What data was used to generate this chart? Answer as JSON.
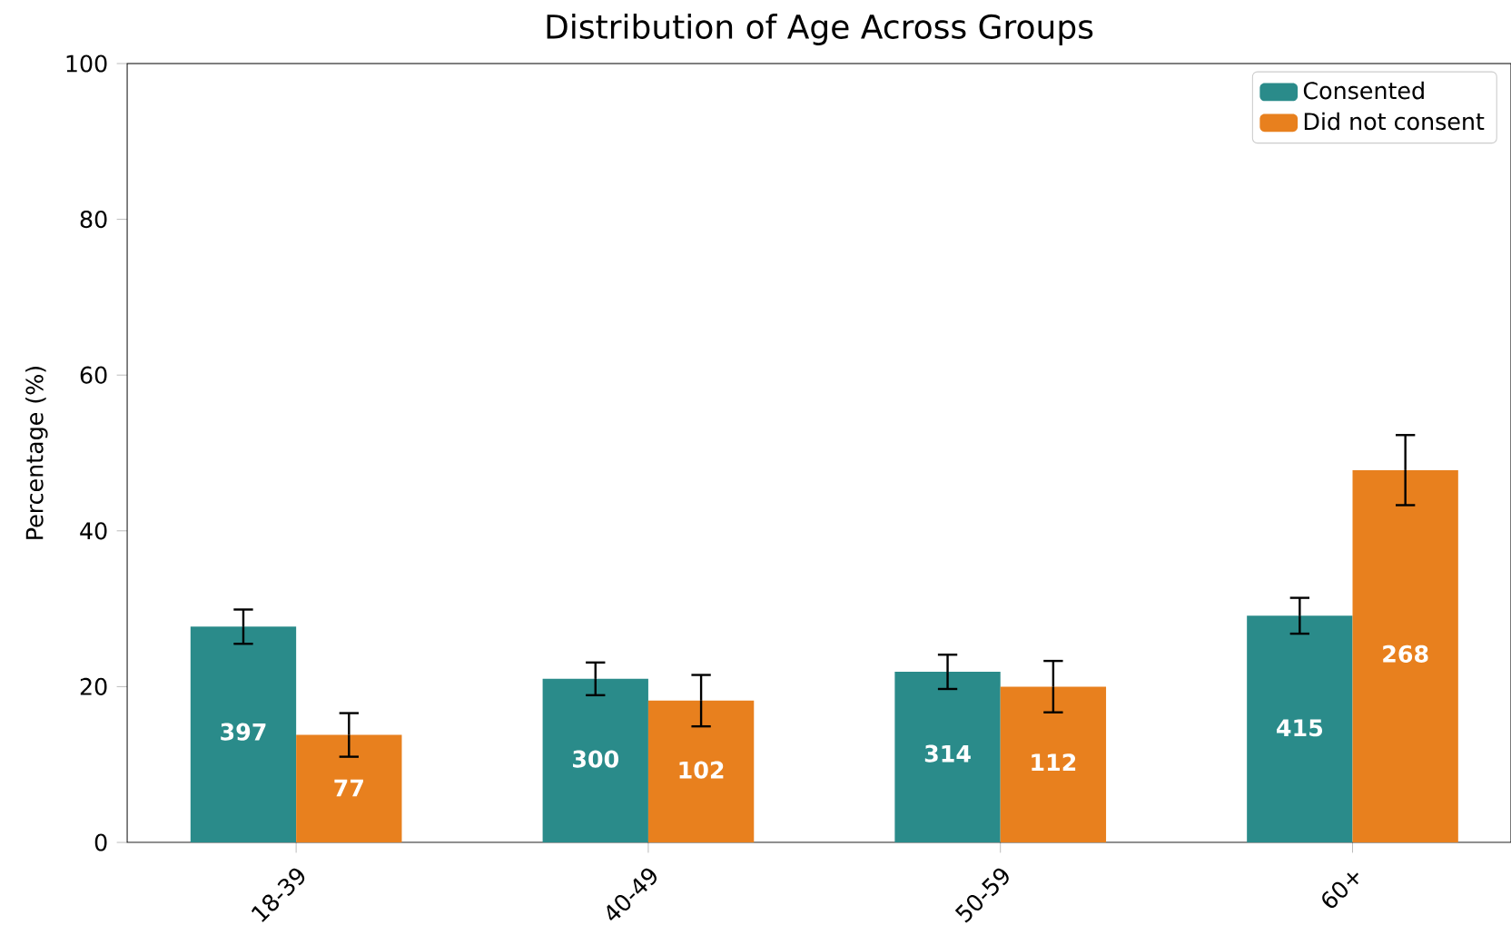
{
  "chart_data": {
    "type": "bar",
    "title": "Distribution of Age  Across Groups",
    "ylabel": "Percentage (%)",
    "categories": [
      "18-39",
      "40-49",
      "50-59",
      "60+"
    ],
    "series": [
      {
        "name": "Consented",
        "color": "#2a8b8a",
        "values": [
          27.7,
          21.0,
          21.9,
          29.1
        ],
        "errors": [
          2.2,
          2.1,
          2.2,
          2.3
        ]
      },
      {
        "name": "Did not consent",
        "color": "#e8801e",
        "values": [
          13.8,
          18.2,
          20.0,
          47.8
        ],
        "errors": [
          2.8,
          3.3,
          3.3,
          4.5
        ]
      }
    ],
    "annotations": [
      {
        "text": "397",
        "x": "18-39",
        "y": 14.2
      },
      {
        "text": "300",
        "x": "40-49",
        "y": 10.7
      },
      {
        "text": "314",
        "x": "50-59",
        "y": 11.4
      },
      {
        "text": "415",
        "x": "60+",
        "y": 14.7
      },
      {
        "text": "77",
        "x": "18-39",
        "y": 7.0
      },
      {
        "text": "102",
        "x": "40-49",
        "y": 9.3
      },
      {
        "text": "112",
        "x": "50-59",
        "y": 10.3
      },
      {
        "text": "268",
        "x": "60+",
        "y": 24.2
      }
    ],
    "ylim": [
      0,
      100
    ],
    "yticks": [
      0,
      20,
      40,
      60,
      80,
      100
    ],
    "legend": "top right",
    "grid": false
  }
}
